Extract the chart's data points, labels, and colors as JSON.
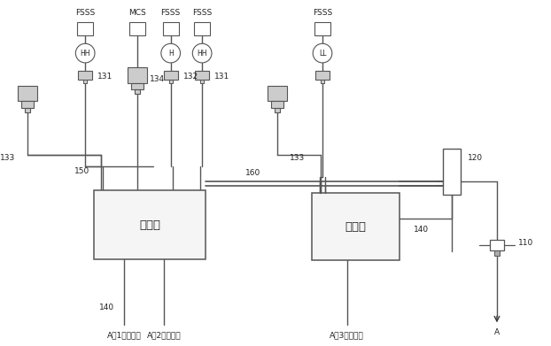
{
  "bg_color": "#ffffff",
  "lc": "#555555",
  "lc2": "#777777",
  "labels": {
    "blower1": "吹扫器",
    "blower2": "吹扫器",
    "sample1": "A侧1取样装置",
    "sample2": "A侧2取样装置",
    "sample3": "A侧3取样装置",
    "n133a": "133",
    "n131a": "131",
    "n134": "134",
    "n132": "132",
    "n131b": "131",
    "n133b": "133",
    "n150": "150",
    "n160": "160",
    "n140a": "140",
    "n140b": "140",
    "n120": "120",
    "n110": "110",
    "nA": "A",
    "fsss1": "FSSS",
    "mcs": "MCS",
    "fsss2": "FSSS",
    "fsss3": "FSSS",
    "fsss4": "FSSS",
    "hh1": "HH",
    "h1": "H",
    "hh2": "HH",
    "ll1": "LL"
  }
}
